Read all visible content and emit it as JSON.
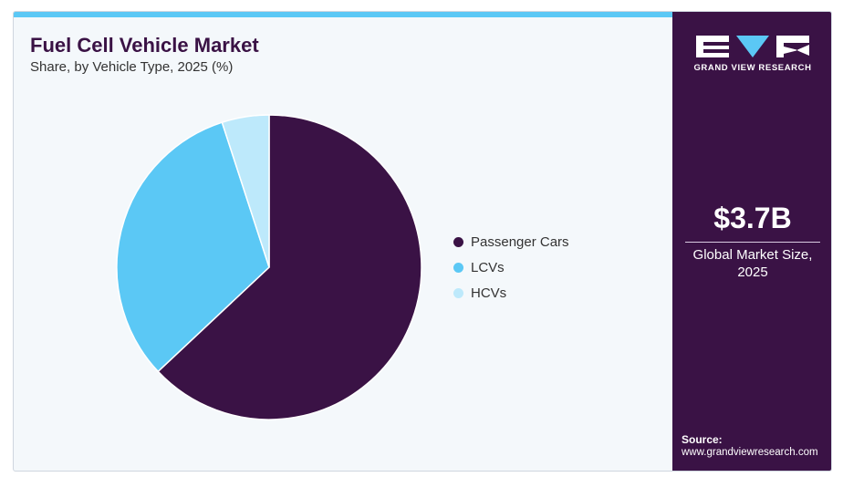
{
  "header": {
    "title": "Fuel Cell Vehicle Market",
    "subtitle": "Share, by Vehicle Type, 2025 (%)"
  },
  "brand": {
    "name": "GRAND VIEW RESEARCH"
  },
  "summary": {
    "value": "$3.7B",
    "label": "Global Market Size, 2025"
  },
  "source": {
    "label": "Source:",
    "url": "www.grandviewresearch.com"
  },
  "colors": {
    "passenger_cars": "#3a1245",
    "lcvs": "#5bc8f5",
    "hcvs": "#bde9fb",
    "panel": "#3a1245",
    "accent": "#5bc8f5"
  },
  "chart_data": {
    "type": "pie",
    "title": "Fuel Cell Vehicle Market",
    "subtitle": "Share, by Vehicle Type, 2025 (%)",
    "categories": [
      "Passenger Cars",
      "LCVs",
      "HCVs"
    ],
    "values": [
      63,
      32,
      5
    ],
    "start_angle_deg": 0,
    "direction": "clockwise",
    "legend_position": "right"
  }
}
